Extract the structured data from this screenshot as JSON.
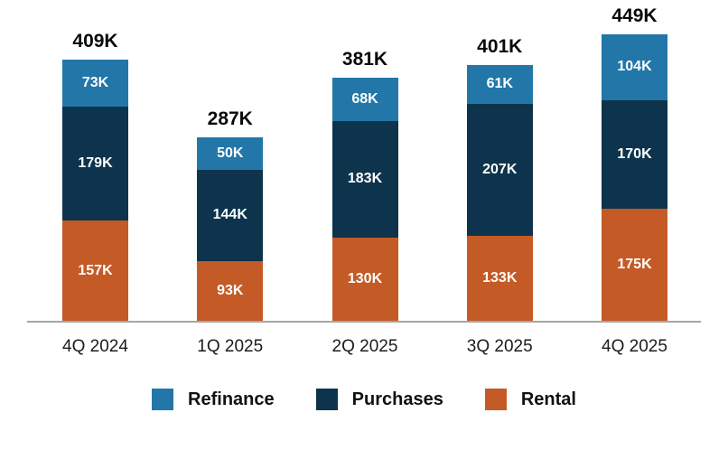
{
  "chart_data": {
    "type": "bar",
    "stacked": true,
    "unit": "K",
    "title": "",
    "xlabel": "",
    "ylabel": "",
    "grid": false,
    "ylim": [
      0,
      460
    ],
    "categories": [
      "4Q 2024",
      "1Q 2025",
      "2Q 2025",
      "3Q 2025",
      "4Q 2025"
    ],
    "series": [
      {
        "name": "Rental",
        "color": "#C45A26",
        "values": [
          157,
          93,
          130,
          133,
          175
        ]
      },
      {
        "name": "Purchases",
        "color": "#0D344C",
        "values": [
          179,
          144,
          183,
          207,
          170
        ]
      },
      {
        "name": "Refinance",
        "color": "#2277A8",
        "values": [
          73,
          50,
          68,
          61,
          104
        ]
      }
    ],
    "totals": [
      "409K",
      "287K",
      "381K",
      "401K",
      "449K"
    ],
    "segment_labels": {
      "Rental": [
        "157K",
        "93K",
        "130K",
        "133K",
        "175K"
      ],
      "Purchases": [
        "179K",
        "144K",
        "183K",
        "207K",
        "170K"
      ],
      "Refinance": [
        "73K",
        "50K",
        "68K",
        "61K",
        "104K"
      ]
    },
    "legend": {
      "position": "bottom",
      "entries": [
        {
          "label": "Refinance",
          "color": "#2277A8"
        },
        {
          "label": "Purchases",
          "color": "#0D344C"
        },
        {
          "label": "Rental",
          "color": "#C45A26"
        }
      ]
    },
    "colors": {
      "axis_line": "#A6A6A6",
      "total_label": "#0A0A0A",
      "segment_label": "#FFFFFF",
      "x_label": "#1C1C1C"
    }
  }
}
